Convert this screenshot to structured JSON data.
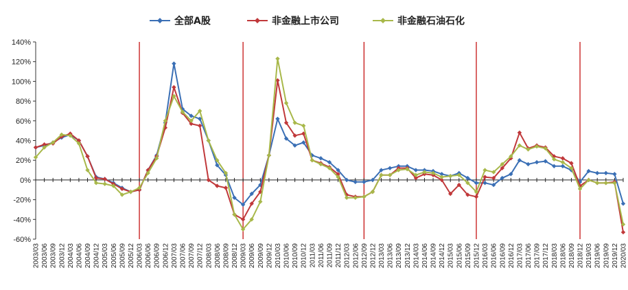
{
  "chart_data": {
    "type": "line",
    "title": "",
    "xlabel": "",
    "ylabel": "",
    "ylim": [
      -60,
      140
    ],
    "yticks": [
      "140%",
      "120%",
      "100%",
      "80%",
      "60%",
      "40%",
      "20%",
      "0%",
      "-20%",
      "-40%",
      "-60%"
    ],
    "grid": false,
    "legend_position": "top",
    "vertical_markers": [
      "2006/03",
      "2009/03",
      "2012/09",
      "2015/12",
      "2018/12"
    ],
    "vertical_marker_color": "#c00000",
    "x": [
      "2003/03",
      "2003/06",
      "2003/09",
      "2003/12",
      "2004/03",
      "2004/06",
      "2004/09",
      "2004/12",
      "2005/03",
      "2005/06",
      "2005/09",
      "2005/12",
      "2006/03",
      "2006/06",
      "2006/09",
      "2006/12",
      "2007/03",
      "2007/06",
      "2007/09",
      "2007/12",
      "2008/03",
      "2008/06",
      "2008/09",
      "2008/12",
      "2009/03",
      "2009/06",
      "2009/09",
      "2009/12",
      "2010/03",
      "2010/06",
      "2010/09",
      "2010/12",
      "2011/03",
      "2011/06",
      "2011/09",
      "2011/12",
      "2012/03",
      "2012/06",
      "2012/09",
      "2012/12",
      "2013/03",
      "2013/06",
      "2013/09",
      "2013/12",
      "2014/03",
      "2014/06",
      "2014/09",
      "2014/12",
      "2015/03",
      "2015/06",
      "2015/09",
      "2015/12",
      "2016/03",
      "2016/06",
      "2016/09",
      "2016/12",
      "2017/03",
      "2017/06",
      "2017/09",
      "2017/12",
      "2018/03",
      "2018/06",
      "2018/09",
      "2018/12",
      "2019/03",
      "2019/06",
      "2019/09",
      "2019/12",
      "2020/03"
    ],
    "series": [
      {
        "name": "全部A股",
        "color": "#3a6fb5",
        "marker": "diamond",
        "values": [
          33,
          35,
          38,
          43,
          46,
          40,
          24,
          3,
          1,
          -3,
          -8,
          -12,
          -10,
          10,
          25,
          58,
          118,
          72,
          65,
          62,
          40,
          15,
          5,
          -18,
          -25,
          -14,
          -5,
          25,
          62,
          42,
          35,
          38,
          25,
          22,
          18,
          10,
          0,
          -2,
          -2,
          0,
          10,
          12,
          14,
          14,
          10,
          10,
          9,
          6,
          4,
          7,
          2,
          -3,
          -3,
          -5,
          2,
          6,
          20,
          16,
          18,
          19,
          14,
          14,
          10,
          -2,
          9,
          7,
          7,
          6,
          -24
        ]
      },
      {
        "name": "非金融上市公司",
        "color": "#c0383a",
        "marker": "diamond",
        "values": [
          33,
          36,
          37,
          44,
          47,
          40,
          24,
          2,
          1,
          -4,
          -9,
          -12,
          -10,
          10,
          24,
          53,
          94,
          68,
          57,
          55,
          0,
          -6,
          -8,
          -35,
          -40,
          -24,
          -12,
          25,
          101,
          58,
          45,
          47,
          20,
          17,
          13,
          6,
          -15,
          -17,
          -17,
          -12,
          5,
          5,
          12,
          12,
          2,
          6,
          5,
          0,
          -14,
          -5,
          -15,
          -17,
          3,
          2,
          12,
          22,
          48,
          32,
          35,
          33,
          24,
          22,
          17,
          -6,
          0,
          -3,
          -3,
          -2,
          -53
        ]
      },
      {
        "name": "非金融石油石化",
        "color": "#a8b84a",
        "marker": "diamond",
        "values": [
          23,
          33,
          38,
          46,
          45,
          37,
          10,
          -3,
          -4,
          -6,
          -15,
          -12,
          -8,
          7,
          22,
          60,
          85,
          69,
          60,
          70,
          40,
          20,
          7,
          -35,
          -50,
          -40,
          -22,
          25,
          123,
          78,
          58,
          55,
          20,
          16,
          12,
          3,
          -18,
          -18,
          -17,
          -12,
          5,
          5,
          10,
          11,
          5,
          8,
          7,
          3,
          4,
          5,
          -3,
          -12,
          10,
          8,
          16,
          24,
          35,
          31,
          34,
          32,
          21,
          18,
          12,
          -9,
          0,
          -3,
          -3,
          -3,
          -45
        ]
      }
    ]
  }
}
